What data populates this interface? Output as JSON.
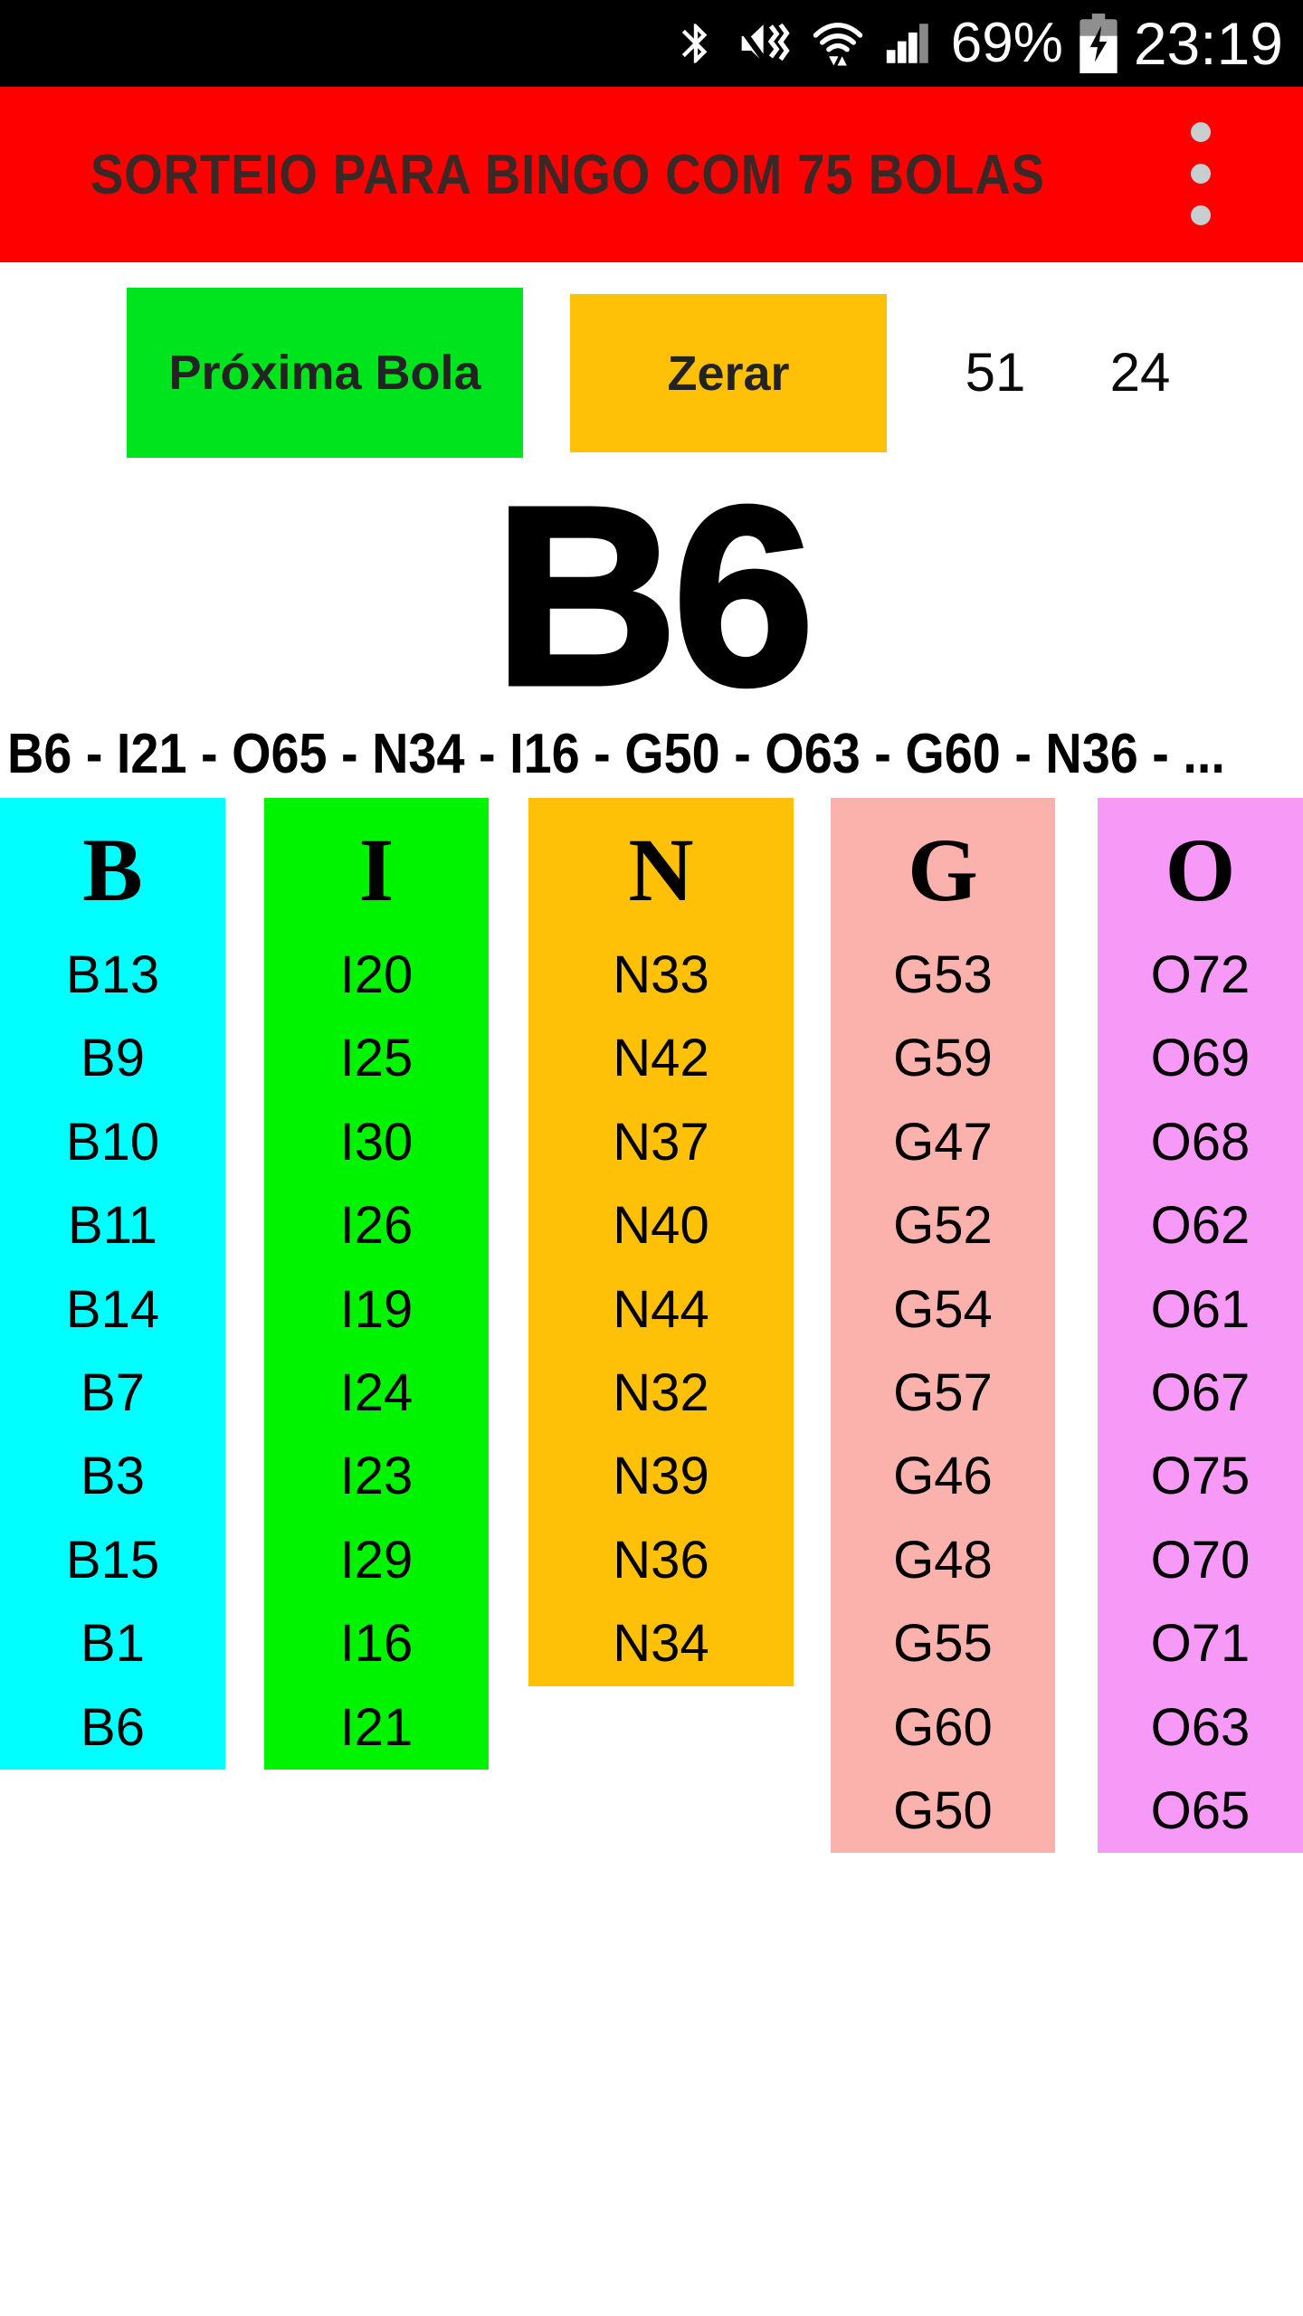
{
  "status_bar": {
    "time": "23:19",
    "battery_percent": "69%",
    "icons": [
      "bluetooth",
      "mute-vibrate",
      "wifi-data",
      "cell-signal",
      "battery-charging"
    ]
  },
  "app_bar": {
    "title": "SORTEIO PARA BINGO COM 75 BOLAS",
    "overflow_menu": "more-options"
  },
  "controls": {
    "next_ball_label": "Próxima Bola",
    "reset_label": "Zerar",
    "drawn_count": "51",
    "remaining_count": "24"
  },
  "current_ball": "B6",
  "history": "B6 - I21 - O65 - N34 - I16 - G50 - O63 - G60 - N36 - ...",
  "board": {
    "columns": [
      {
        "letter": "B",
        "color": "#00FFFF",
        "balls": [
          "B13",
          "B9",
          "B10",
          "B11",
          "B14",
          "B7",
          "B3",
          "B15",
          "B1",
          "B6"
        ]
      },
      {
        "letter": "I",
        "color": "#00F400",
        "balls": [
          "I20",
          "I25",
          "I30",
          "I26",
          "I19",
          "I24",
          "I23",
          "I29",
          "I16",
          "I21"
        ]
      },
      {
        "letter": "N",
        "color": "#FFC107",
        "balls": [
          "N33",
          "N42",
          "N37",
          "N40",
          "N44",
          "N32",
          "N39",
          "N36",
          "N34"
        ]
      },
      {
        "letter": "G",
        "color": "#FBB1AC",
        "balls": [
          "G53",
          "G59",
          "G47",
          "G52",
          "G54",
          "G57",
          "G46",
          "G48",
          "G55",
          "G60",
          "G50"
        ]
      },
      {
        "letter": "O",
        "color": "#F79AF7",
        "balls": [
          "O72",
          "O69",
          "O68",
          "O62",
          "O61",
          "O67",
          "O75",
          "O70",
          "O71",
          "O63",
          "O65"
        ]
      }
    ]
  },
  "colors": {
    "status_bar_bg": "#000000",
    "app_bar_bg": "#FF0000",
    "next_button_bg": "#00E41E",
    "reset_button_bg": "#FFC107",
    "title_text": "#3B2826",
    "overflow_dots": "#C9CED1"
  }
}
